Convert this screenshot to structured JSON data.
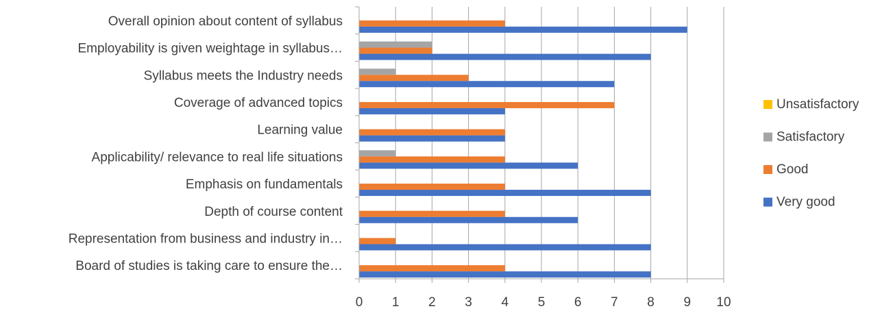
{
  "chart_data": {
    "type": "bar",
    "orientation": "horizontal",
    "categories": [
      "Overall opinion about content of syllabus",
      "Employability is given weightage in syllabus…",
      "Syllabus meets the Industry needs",
      "Coverage of advanced topics",
      "Learning value",
      "Applicability/ relevance to real life situations",
      "Emphasis on fundamentals",
      "Depth of course content",
      "Representation from business and industry in…",
      "Board of studies is taking care to ensure the…"
    ],
    "series": [
      {
        "name": "Unsatisfactory",
        "color": "#FFC000",
        "values": [
          0,
          0,
          0,
          0,
          0,
          0,
          0,
          0,
          0,
          0
        ]
      },
      {
        "name": "Satisfactory",
        "color": "#A5A5A5",
        "values": [
          0,
          2,
          1,
          0,
          0,
          1,
          0,
          0,
          0,
          0
        ]
      },
      {
        "name": "Good",
        "color": "#ED7D31",
        "values": [
          4,
          2,
          3,
          7,
          4,
          4,
          4,
          4,
          1,
          4
        ]
      },
      {
        "name": "Very good",
        "color": "#4472C4",
        "values": [
          9,
          8,
          7,
          4,
          4,
          6,
          8,
          6,
          8,
          8
        ]
      }
    ],
    "xlim": [
      0,
      10
    ],
    "xticks": [
      "0",
      "1",
      "2",
      "3",
      "4",
      "5",
      "6",
      "7",
      "8",
      "9",
      "10"
    ],
    "grid": true,
    "legend_position": "right",
    "legend_order": [
      "Unsatisfactory",
      "Satisfactory",
      "Good",
      "Very good"
    ],
    "gridline_color": "#A6A6A6"
  }
}
